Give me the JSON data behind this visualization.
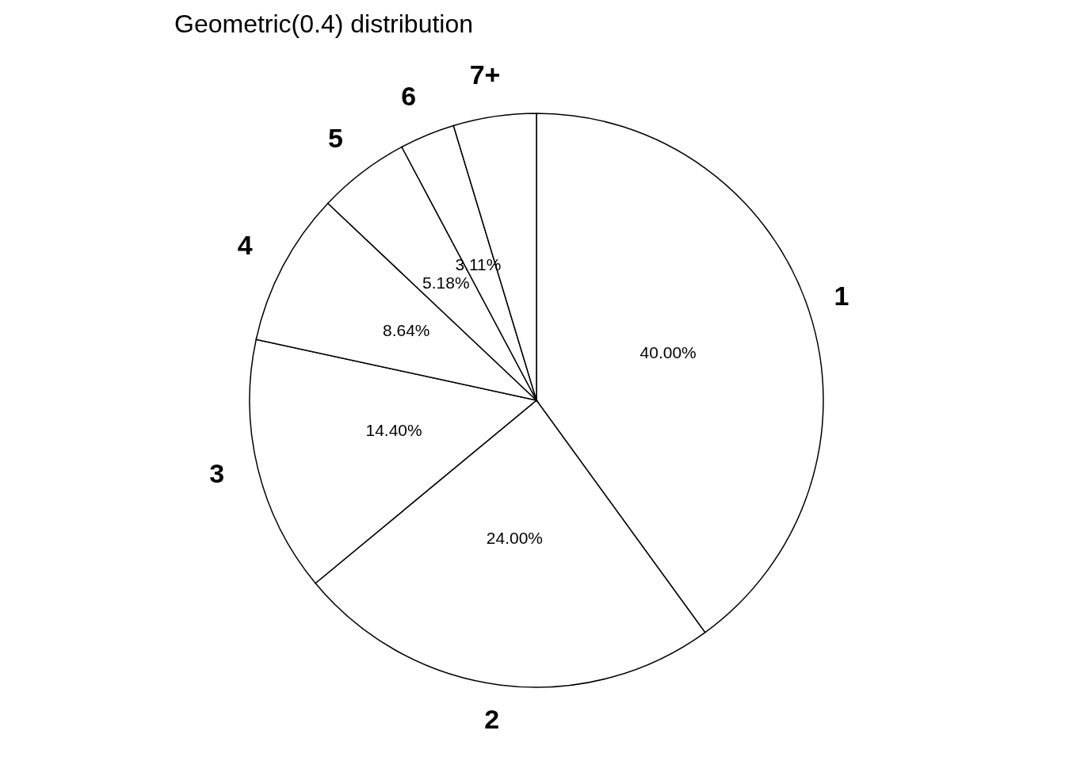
{
  "chart_data": {
    "type": "pie",
    "title": "Geometric(0.4) distribution",
    "categories": [
      "1",
      "2",
      "3",
      "4",
      "5",
      "6",
      "7+"
    ],
    "values": [
      40,
      24,
      14.4,
      8.64,
      5.18,
      3.11,
      4.67
    ],
    "colors": [
      "#ffffff",
      "#ffffff",
      "#ffffff",
      "#ffffff",
      "#ffffff",
      "#ffffff",
      "#ffffff"
    ],
    "value_labels": [
      "40.00%",
      "24.00%",
      "14.40%",
      "8.64%",
      "5.18%",
      "3.11%",
      null
    ],
    "legend": false
  }
}
